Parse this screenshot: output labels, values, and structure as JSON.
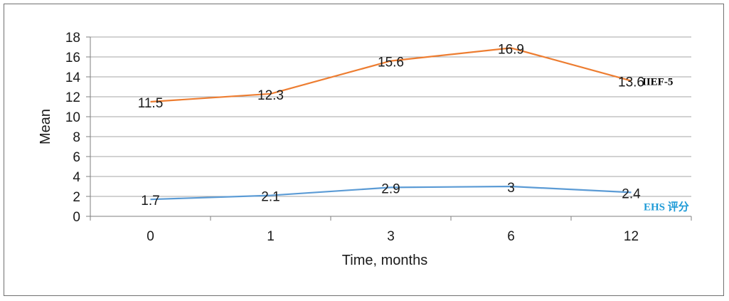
{
  "chart_data": {
    "type": "line",
    "title": "",
    "xlabel": "Time, months",
    "ylabel": "Mean",
    "categories": [
      "0",
      "1",
      "3",
      "6",
      "12"
    ],
    "ylim": [
      0,
      18
    ],
    "yticks": [
      0,
      2,
      4,
      6,
      8,
      10,
      12,
      14,
      16,
      18
    ],
    "grid": true,
    "series": [
      {
        "name": "IIEF-5",
        "color": "#ED7D31",
        "label_color": "#000000",
        "values": [
          11.5,
          12.3,
          15.6,
          16.9,
          13.6
        ],
        "data_labels": [
          "11.5",
          "12.3",
          "15.6",
          "16.9",
          "13.6"
        ]
      },
      {
        "name": "EHS 评分",
        "color": "#5B9BD5",
        "label_color": "#1F9BD7",
        "values": [
          1.7,
          2.1,
          2.9,
          3,
          2.4
        ],
        "data_labels": [
          "1.7",
          "2.1",
          "2.9",
          "3",
          "2.4"
        ]
      }
    ]
  }
}
